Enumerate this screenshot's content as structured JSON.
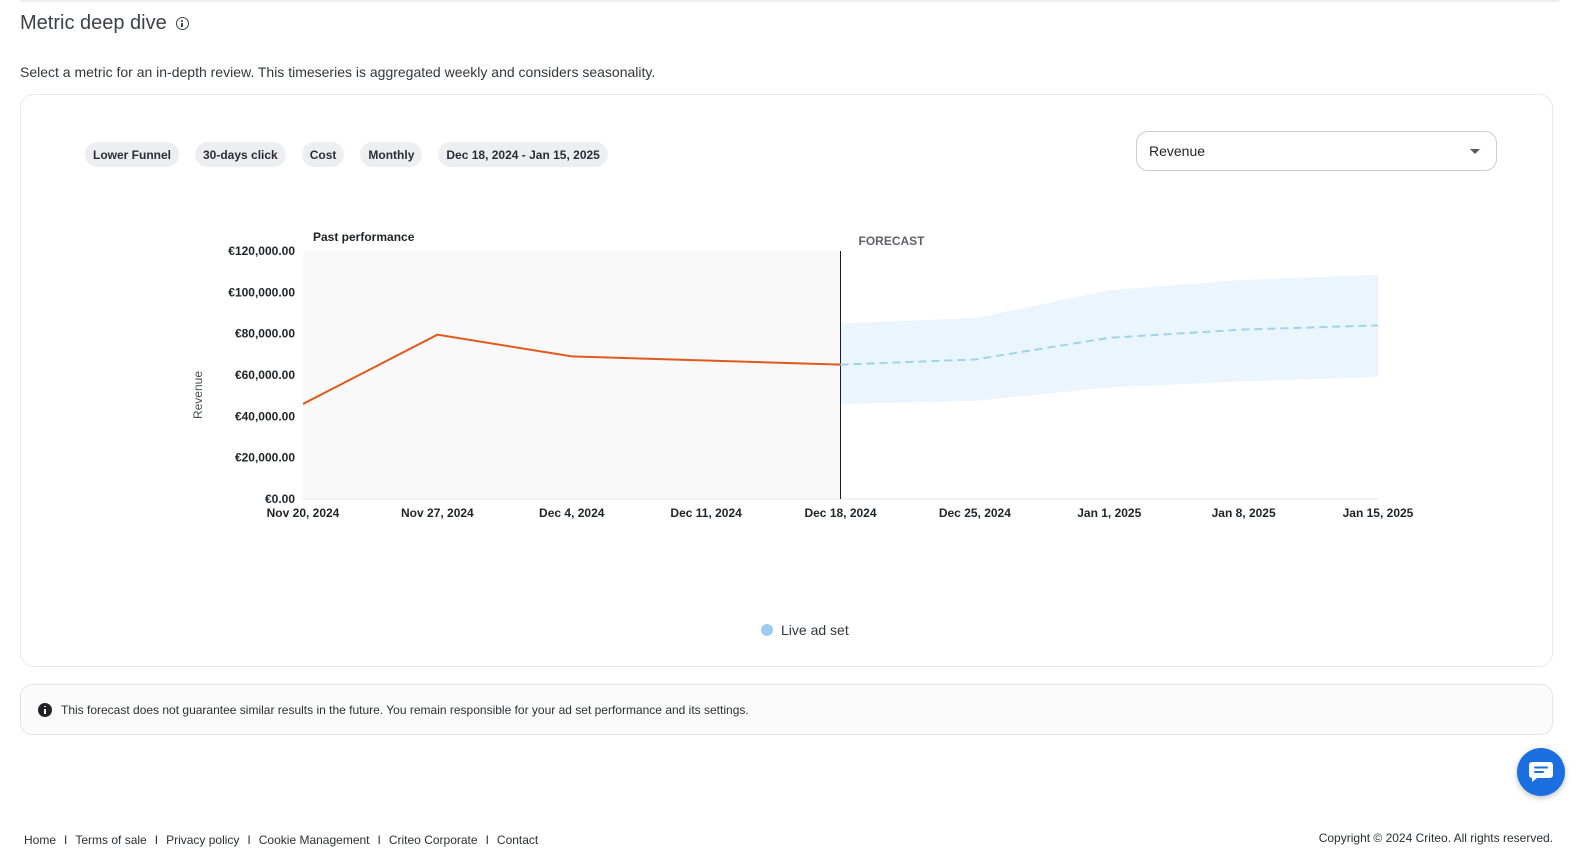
{
  "header": {
    "title": "Metric deep dive",
    "info_icon": "info-icon",
    "subtitle": "Select a metric for an in-depth review. This timeseries is aggregated weekly and considers seasonality."
  },
  "filters": {
    "chips": [
      "Lower Funnel",
      "30-days click",
      "Cost",
      "Monthly",
      "Dec 18, 2024 - Jan 15, 2025"
    ]
  },
  "metric_select": {
    "selected": "Revenue",
    "icon": "chevron-down-icon"
  },
  "chart_labels": {
    "past": "Past performance",
    "forecast": "FORECAST"
  },
  "chart_data": {
    "type": "line",
    "title": "",
    "xlabel": "",
    "ylabel": "Revenue",
    "x": [
      "Nov 20, 2024",
      "Nov 27, 2024",
      "Dec 4, 2024",
      "Dec 11, 2024",
      "Dec 18, 2024",
      "Dec 25, 2024",
      "Jan 1, 2025",
      "Jan 8, 2025",
      "Jan 15, 2025"
    ],
    "y_ticks": [
      "€0.00",
      "€20,000.00",
      "€40,000.00",
      "€60,000.00",
      "€80,000.00",
      "€100,000.00",
      "€120,000.00"
    ],
    "ylim": [
      0,
      120000
    ],
    "grid": false,
    "series": [
      {
        "kind": "past",
        "values": [
          46000,
          79500,
          69000,
          67000,
          65000,
          null,
          null,
          null,
          null
        ],
        "color": "#e05a1c"
      },
      {
        "kind": "forecast",
        "values": [
          null,
          null,
          null,
          null,
          65000,
          67500,
          78000,
          82000,
          84000
        ],
        "color": "#9fd3ea",
        "dashed": true
      },
      {
        "kind": "forecast-range",
        "lower": [
          null,
          null,
          null,
          null,
          46000,
          47500,
          54000,
          57000,
          59000
        ],
        "upper": [
          null,
          null,
          null,
          null,
          85000,
          87500,
          101000,
          106000,
          108500
        ],
        "color": "#eaf5fd"
      }
    ],
    "legend": [
      {
        "label": "Live ad set",
        "color": "#9ccdee"
      }
    ],
    "legend_position": "bottom-center"
  },
  "notice": {
    "icon": "info-filled-icon",
    "text": "This forecast does not guarantee similar results in the future. You remain responsible for your ad set performance and its settings."
  },
  "chat": {
    "icon": "chat-icon"
  },
  "footer": {
    "links": [
      "Home",
      "Terms of sale",
      "Privacy policy",
      "Cookie Management",
      "Criteo Corporate",
      "Contact"
    ],
    "separator": "I",
    "copyright": "Copyright © 2024 Criteo. All rights reserved."
  }
}
